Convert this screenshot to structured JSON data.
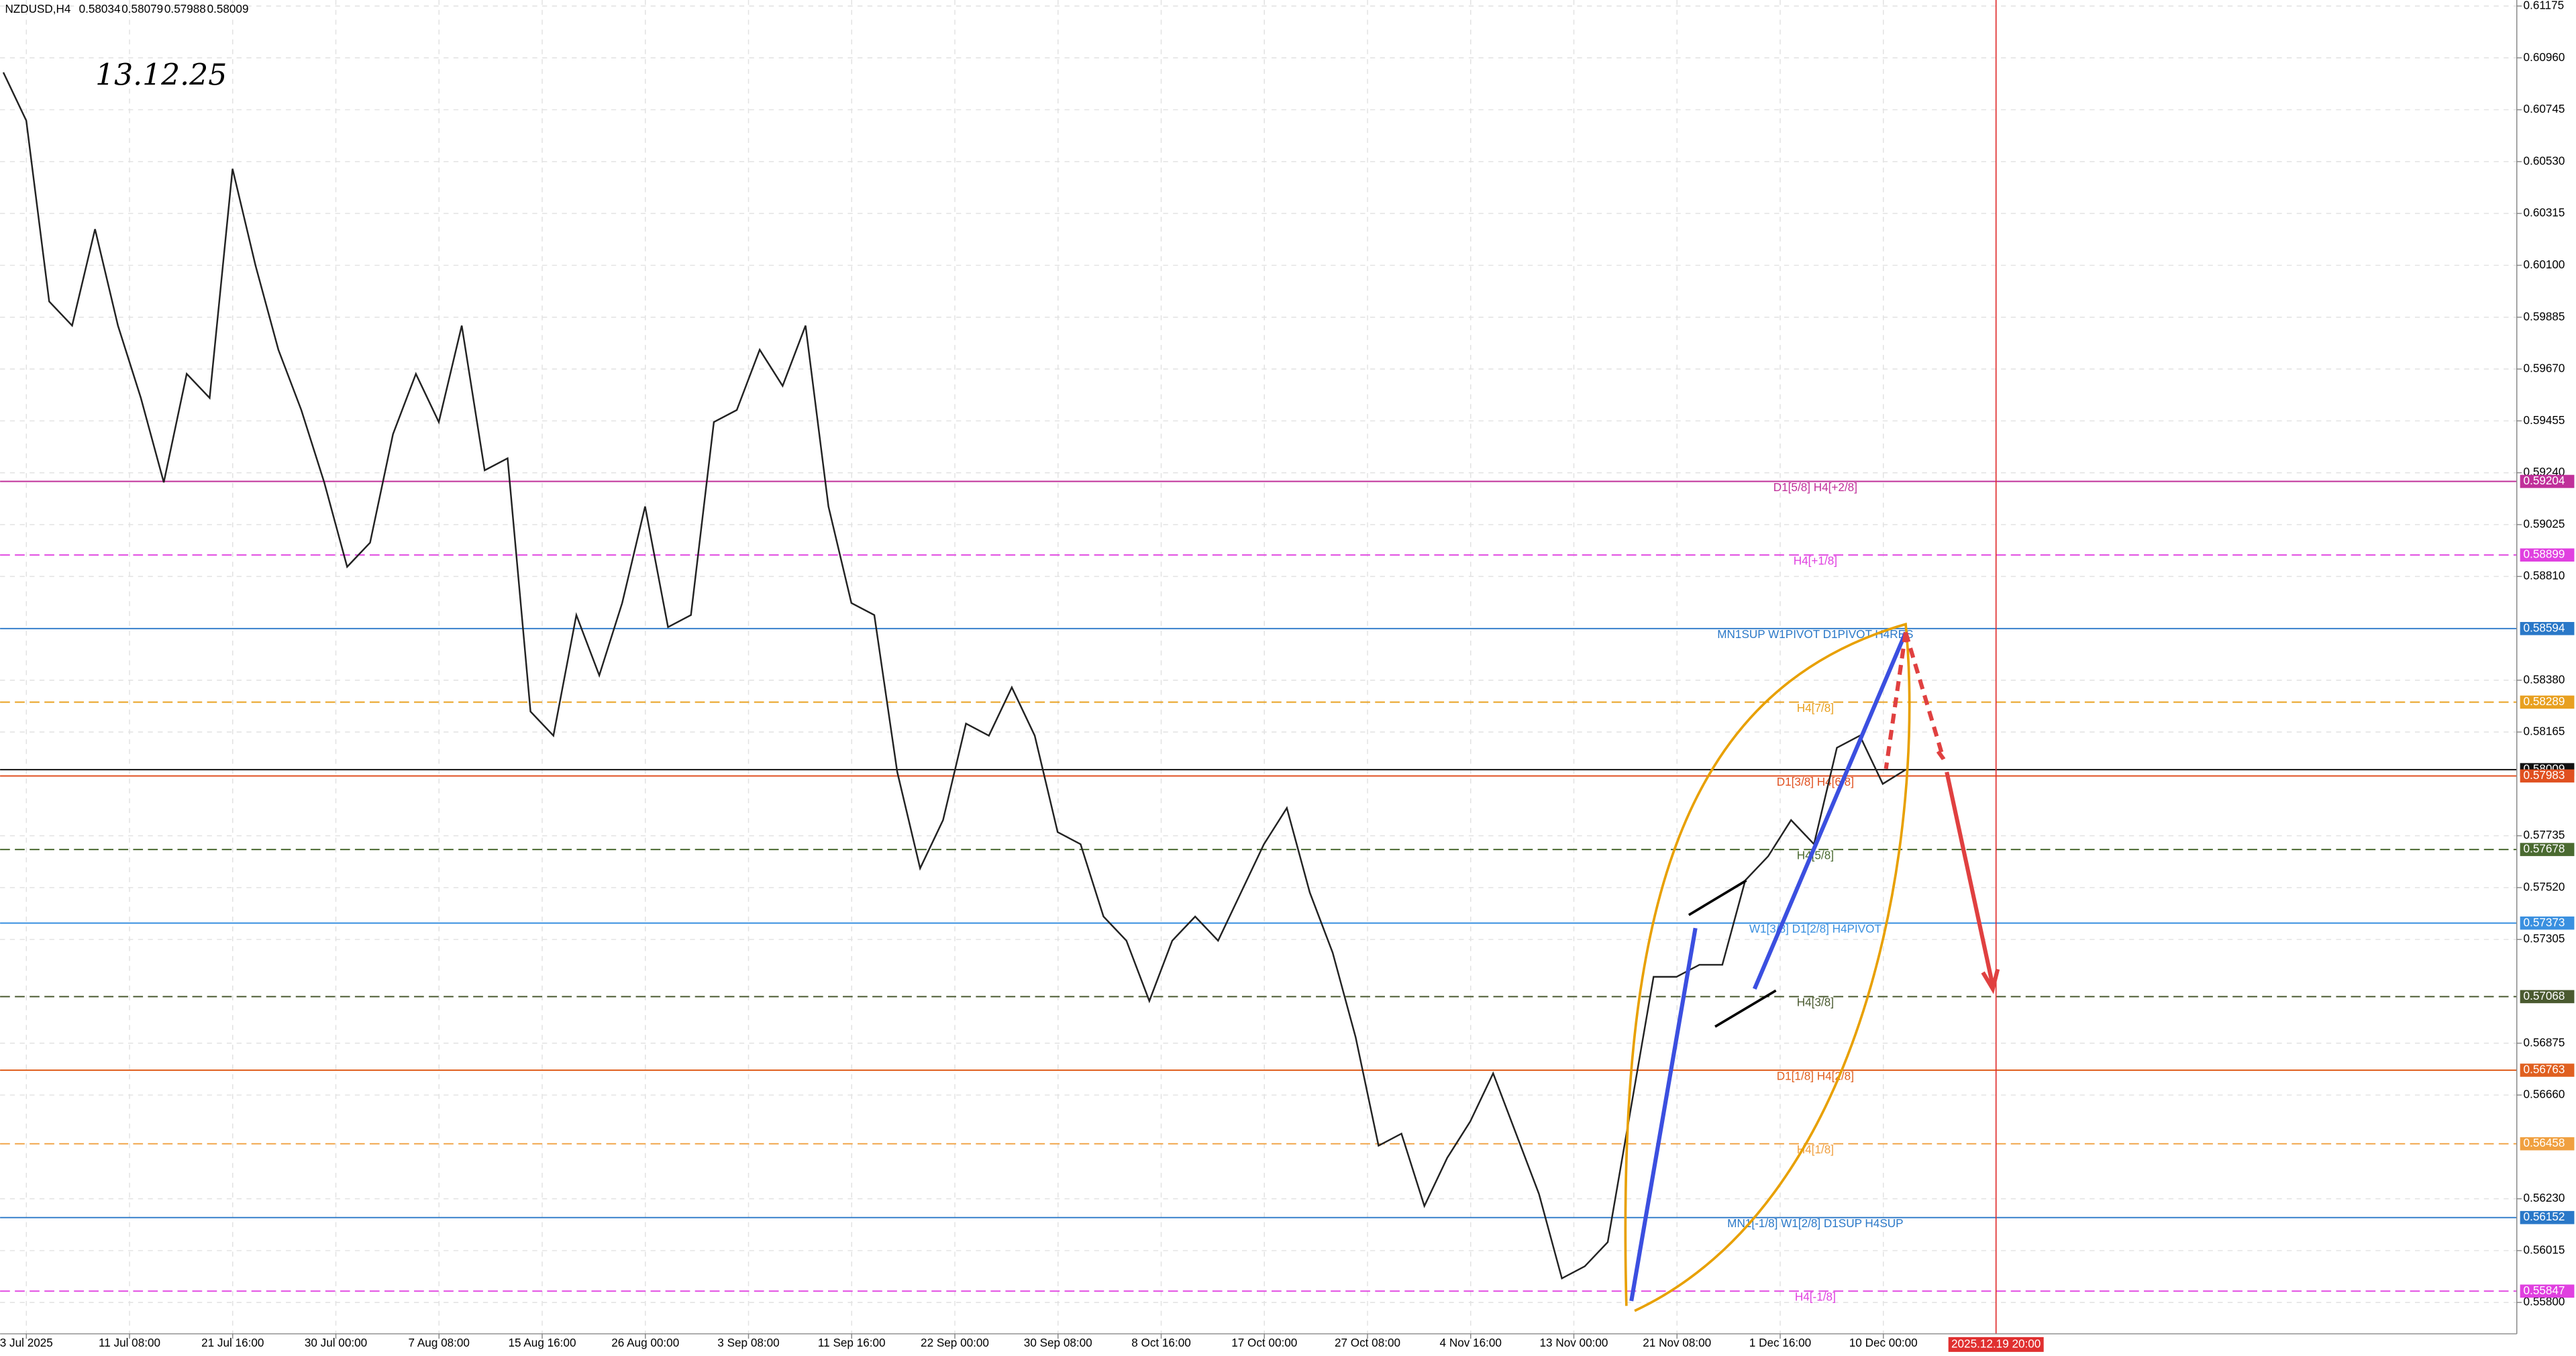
{
  "header": {
    "symbol": "NZDUSD,H4",
    "ohlc": [
      0.58034,
      0.58079,
      0.57988,
      0.58009
    ]
  },
  "chart_data": {
    "type": "line",
    "annotation": "13.12.25",
    "series": [
      {
        "name": "NZDUSD",
        "color": "#222222",
        "values": [
          0.609,
          0.607,
          0.5995,
          0.5985,
          0.6025,
          0.5985,
          0.5955,
          0.592,
          0.5965,
          0.5955,
          0.605,
          0.601,
          0.5975,
          0.595,
          0.592,
          0.5885,
          0.5895,
          0.594,
          0.5965,
          0.5945,
          0.5985,
          0.5925,
          0.593,
          0.5825,
          0.5815,
          0.5865,
          0.584,
          0.587,
          0.591,
          0.586,
          0.5865,
          0.5945,
          0.595,
          0.5975,
          0.596,
          0.5985,
          0.591,
          0.587,
          0.5865,
          0.58,
          0.576,
          0.578,
          0.582,
          0.5815,
          0.5835,
          0.5815,
          0.5775,
          0.577,
          0.574,
          0.573,
          0.5705,
          0.573,
          0.574,
          0.573,
          0.575,
          0.577,
          0.5785,
          0.575,
          0.5725,
          0.569,
          0.5645,
          0.565,
          0.562,
          0.564,
          0.5655,
          0.5675,
          0.565,
          0.5625,
          0.559,
          0.5595,
          0.5605,
          0.566,
          0.5715,
          0.5715,
          0.572,
          0.572,
          0.5755,
          0.5765,
          0.578,
          0.577,
          0.581,
          0.5815,
          0.5795,
          0.58009
        ]
      }
    ],
    "xticks": [
      "3 Jul 2025",
      "11 Jul 08:00",
      "21 Jul 16:00",
      "30 Jul 00:00",
      "7 Aug 08:00",
      "15 Aug 16:00",
      "26 Aug 00:00",
      "3 Sep 08:00",
      "11 Sep 16:00",
      "22 Sep 00:00",
      "30 Sep 08:00",
      "8 Oct 16:00",
      "17 Oct 00:00",
      "27 Oct 08:00",
      "4 Nov 16:00",
      "13 Nov 00:00",
      "21 Nov 08:00",
      "1 Dec 16:00",
      "10 Dec 00:00"
    ],
    "future_marker": {
      "label": "2025.12.19 20:00",
      "color": "#e03030"
    },
    "ylim": [
      0.5567,
      0.612
    ],
    "yticks": [
      0.61175,
      {
        "value": 0.6096,
        "label": "0.60960"
      },
      0.60745,
      {
        "value": 0.6053,
        "label": "0.60530"
      },
      0.60315,
      {
        "value": 0.601,
        "label": "0.60100"
      },
      0.59885,
      {
        "value": 0.5967,
        "label": "0.59670"
      },
      0.59455,
      {
        "value": 0.5924,
        "label": "0.59240"
      },
      0.59025,
      {
        "value": 0.5881,
        "label": "0.58810"
      },
      {
        "value": 0.5838,
        "label": "0.58380"
      },
      0.58165,
      0.57735,
      {
        "value": 0.5752,
        "label": "0.57520"
      },
      0.57305,
      0.56875,
      {
        "value": 0.5666,
        "label": "0.56660"
      },
      {
        "value": 0.5623,
        "label": "0.56230"
      },
      0.56015,
      {
        "value": 0.558,
        "label": "0.55800"
      }
    ],
    "grid": true,
    "levels": [
      {
        "price": 0.59204,
        "label": "D1[5/8] H4[+2/8]",
        "color": "#c0309a",
        "dash": false
      },
      {
        "price": 0.58899,
        "label": "H4[+1/8]",
        "color": "#e040e0",
        "dash": true
      },
      {
        "price": 0.58594,
        "label": "MN1SUP W1PIVOT D1PIVOT H4RES",
        "color": "#2a78c8",
        "dash": false
      },
      {
        "price": 0.58289,
        "label": "H4[7/8]",
        "color": "#e8a020",
        "dash": true
      },
      {
        "price": 0.58009,
        "color": "#111111",
        "dash": false
      },
      {
        "price": 0.57983,
        "label": "D1[3/8] H4[6/8]",
        "color": "#e05020",
        "dash": false
      },
      {
        "price": 0.57678,
        "label": "H4[5/8]",
        "color": "#4a6a30",
        "dash": true
      },
      {
        "price": 0.57373,
        "label": "W1[3/8] D1[2/8] H4PIVOT",
        "color": "#3a90e0",
        "dash": false
      },
      {
        "price": 0.57068,
        "label": "H4[3/8]",
        "color": "#4a5a30",
        "dash": true
      },
      {
        "price": 0.56763,
        "label": "D1[1/8] H4[2/8]",
        "color": "#e06020",
        "dash": false
      },
      {
        "price": 0.56458,
        "label": "H4[1/8]",
        "color": "#f0a040",
        "dash": true
      },
      {
        "price": 0.56152,
        "label": "MN1[-1/8] W1[2/8] D1SUP H4SUP",
        "color": "#2a78c8",
        "dash": false
      },
      {
        "price": 0.55847,
        "label": "H4[-1/8]",
        "color": "#e040e0",
        "dash": true
      }
    ]
  }
}
